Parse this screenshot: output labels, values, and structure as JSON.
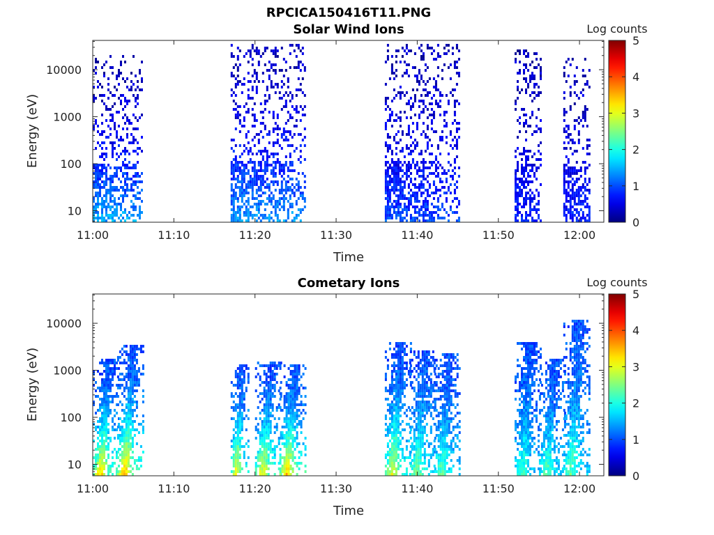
{
  "figure_title": "RPCICA150416T11.PNG",
  "chart_data": [
    {
      "type": "heatmap",
      "title": "Solar Wind Ions",
      "xlabel": "Time",
      "ylabel": "Energy (eV)",
      "xlim": [
        "11:00",
        "12:03"
      ],
      "ylim": [
        5.7,
        42000
      ],
      "yscale": "log",
      "x_ticks": [
        "11:00",
        "11:10",
        "11:20",
        "11:30",
        "11:40",
        "11:50",
        "12:00"
      ],
      "y_ticks": [
        "10",
        "100",
        "1000",
        "10000"
      ],
      "colorbar": {
        "label": "Log counts",
        "range": [
          0,
          5
        ],
        "ticks": [
          "0",
          "1",
          "2",
          "3",
          "4",
          "5"
        ],
        "colormap": "jet"
      },
      "grid": false,
      "bursts": [
        {
          "start": "11:00",
          "end": "11:06",
          "low_energy_intensity": 1.5,
          "high_energy_intensity": 0.3,
          "max_energy": 22000
        },
        {
          "start": "11:17",
          "end": "11:26",
          "low_energy_intensity": 1.4,
          "high_energy_intensity": 0.3,
          "max_energy": 38000
        },
        {
          "start": "11:36",
          "end": "11:45",
          "low_energy_intensity": 1.0,
          "high_energy_intensity": 0.3,
          "max_energy": 38000
        },
        {
          "start": "11:52",
          "end": "11:55",
          "low_energy_intensity": 0.8,
          "high_energy_intensity": 0.3,
          "max_energy": 28000
        },
        {
          "start": "11:58",
          "end": "12:01",
          "low_energy_intensity": 0.8,
          "high_energy_intensity": 0.3,
          "max_energy": 19000
        }
      ]
    },
    {
      "type": "heatmap",
      "title": "Cometary Ions",
      "xlabel": "Time",
      "ylabel": "Energy (eV)",
      "xlim": [
        "11:00",
        "12:03"
      ],
      "ylim": [
        5.7,
        42000
      ],
      "yscale": "log",
      "x_ticks": [
        "11:00",
        "11:10",
        "11:20",
        "11:30",
        "11:40",
        "11:50",
        "12:00"
      ],
      "y_ticks": [
        "10",
        "100",
        "1000",
        "10000"
      ],
      "colorbar": {
        "label": "Log counts",
        "range": [
          0,
          5
        ],
        "ticks": [
          "0",
          "1",
          "2",
          "3",
          "4",
          "5"
        ],
        "colormap": "jet"
      },
      "grid": false,
      "bursts": [
        {
          "start": "11:00",
          "end": "11:03",
          "low_energy_intensity": 3.4,
          "high_energy_intensity": 1.0,
          "max_energy": 2000
        },
        {
          "start": "11:03",
          "end": "11:06",
          "low_energy_intensity": 3.6,
          "high_energy_intensity": 1.0,
          "max_energy": 3500
        },
        {
          "start": "11:17",
          "end": "11:19",
          "low_energy_intensity": 3.3,
          "high_energy_intensity": 1.0,
          "max_energy": 1500
        },
        {
          "start": "11:20",
          "end": "11:23",
          "low_energy_intensity": 3.2,
          "high_energy_intensity": 1.0,
          "max_energy": 1600
        },
        {
          "start": "11:23",
          "end": "11:26",
          "low_energy_intensity": 3.6,
          "high_energy_intensity": 1.0,
          "max_energy": 1500
        },
        {
          "start": "11:36",
          "end": "11:39",
          "low_energy_intensity": 3.1,
          "high_energy_intensity": 1.0,
          "max_energy": 4000
        },
        {
          "start": "11:39",
          "end": "11:42",
          "low_energy_intensity": 2.6,
          "high_energy_intensity": 1.0,
          "max_energy": 3000
        },
        {
          "start": "11:42",
          "end": "11:45",
          "low_energy_intensity": 2.4,
          "high_energy_intensity": 1.0,
          "max_energy": 2500
        },
        {
          "start": "11:52",
          "end": "11:55",
          "low_energy_intensity": 2.3,
          "high_energy_intensity": 1.0,
          "max_energy": 4500
        },
        {
          "start": "11:55",
          "end": "11:58",
          "low_energy_intensity": 2.4,
          "high_energy_intensity": 1.0,
          "max_energy": 2000
        },
        {
          "start": "11:58",
          "end": "12:01",
          "low_energy_intensity": 2.4,
          "high_energy_intensity": 1.0,
          "max_energy": 12000
        }
      ]
    }
  ]
}
